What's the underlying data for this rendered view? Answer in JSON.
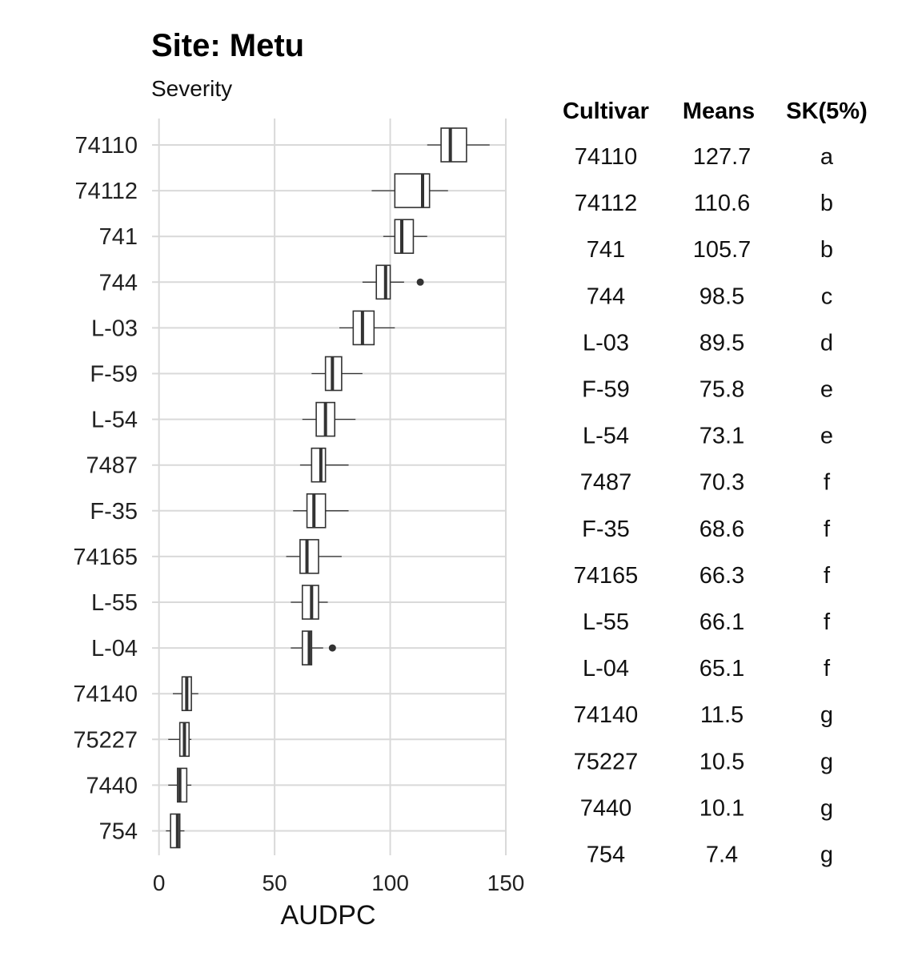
{
  "chart_data": {
    "type": "boxplot",
    "title": "Site: Metu",
    "subtitle": "Severity",
    "xlabel": "AUDPC",
    "ylabel": "",
    "xlim": [
      -3,
      150
    ],
    "xticks": [
      0,
      50,
      100,
      150
    ],
    "grid": true,
    "categories": [
      "74110",
      "74112",
      "741",
      "744",
      "L-03",
      "F-59",
      "L-54",
      "7487",
      "F-35",
      "74165",
      "L-55",
      "L-04",
      "74140",
      "75227",
      "7440",
      "754"
    ],
    "boxes": [
      {
        "cultivar": "74110",
        "whisker_low": 116,
        "q1": 122,
        "median": 126,
        "q3": 133,
        "whisker_high": 143,
        "outliers": []
      },
      {
        "cultivar": "74112",
        "whisker_low": 92,
        "q1": 102,
        "median": 114,
        "q3": 117,
        "whisker_high": 125,
        "outliers": []
      },
      {
        "cultivar": "741",
        "whisker_low": 97,
        "q1": 102,
        "median": 105,
        "q3": 110,
        "whisker_high": 116,
        "outliers": []
      },
      {
        "cultivar": "744",
        "whisker_low": 88,
        "q1": 94,
        "median": 98,
        "q3": 100,
        "whisker_high": 106,
        "outliers": [
          113
        ]
      },
      {
        "cultivar": "L-03",
        "whisker_low": 78,
        "q1": 84,
        "median": 88,
        "q3": 93,
        "whisker_high": 102,
        "outliers": []
      },
      {
        "cultivar": "F-59",
        "whisker_low": 66,
        "q1": 72,
        "median": 75,
        "q3": 79,
        "whisker_high": 88,
        "outliers": []
      },
      {
        "cultivar": "L-54",
        "whisker_low": 62,
        "q1": 68,
        "median": 72,
        "q3": 76,
        "whisker_high": 85,
        "outliers": []
      },
      {
        "cultivar": "7487",
        "whisker_low": 61,
        "q1": 66,
        "median": 70,
        "q3": 72,
        "whisker_high": 82,
        "outliers": []
      },
      {
        "cultivar": "F-35",
        "whisker_low": 58,
        "q1": 64,
        "median": 67,
        "q3": 72,
        "whisker_high": 82,
        "outliers": []
      },
      {
        "cultivar": "74165",
        "whisker_low": 55,
        "q1": 61,
        "median": 64,
        "q3": 69,
        "whisker_high": 79,
        "outliers": []
      },
      {
        "cultivar": "L-55",
        "whisker_low": 57,
        "q1": 62,
        "median": 66,
        "q3": 69,
        "whisker_high": 73,
        "outliers": []
      },
      {
        "cultivar": "L-04",
        "whisker_low": 57,
        "q1": 62,
        "median": 65,
        "q3": 66,
        "whisker_high": 71,
        "outliers": [
          75
        ]
      },
      {
        "cultivar": "74140",
        "whisker_low": 6,
        "q1": 10,
        "median": 12,
        "q3": 14,
        "whisker_high": 17,
        "outliers": []
      },
      {
        "cultivar": "75227",
        "whisker_low": 4,
        "q1": 9,
        "median": 11,
        "q3": 13,
        "whisker_high": 14,
        "outliers": []
      },
      {
        "cultivar": "7440",
        "whisker_low": 4,
        "q1": 8,
        "median": 9,
        "q3": 12,
        "whisker_high": 14,
        "outliers": []
      },
      {
        "cultivar": "754",
        "whisker_low": 3,
        "q1": 5,
        "median": 8,
        "q3": 9,
        "whisker_high": 11,
        "outliers": []
      }
    ],
    "table": {
      "headers": [
        "Cultivar",
        "Means",
        "SK(5%)"
      ],
      "rows": [
        [
          "74110",
          "127.7",
          "a"
        ],
        [
          "74112",
          "110.6",
          "b"
        ],
        [
          "741",
          "105.7",
          "b"
        ],
        [
          "744",
          "98.5",
          "c"
        ],
        [
          "L-03",
          "89.5",
          "d"
        ],
        [
          "F-59",
          "75.8",
          "e"
        ],
        [
          "L-54",
          "73.1",
          "e"
        ],
        [
          "7487",
          "70.3",
          "f"
        ],
        [
          "F-35",
          "68.6",
          "f"
        ],
        [
          "74165",
          "66.3",
          "f"
        ],
        [
          "L-55",
          "66.1",
          "f"
        ],
        [
          "L-04",
          "65.1",
          "f"
        ],
        [
          "74140",
          "11.5",
          "g"
        ],
        [
          "75227",
          "10.5",
          "g"
        ],
        [
          "7440",
          "10.1",
          "g"
        ],
        [
          "754",
          "7.4",
          "g"
        ]
      ]
    },
    "colors": {
      "grid": "#d9d9d9",
      "box_stroke": "#333333",
      "median": "#333333",
      "box_fill": "#ffffff",
      "outlier": "#333333"
    }
  }
}
